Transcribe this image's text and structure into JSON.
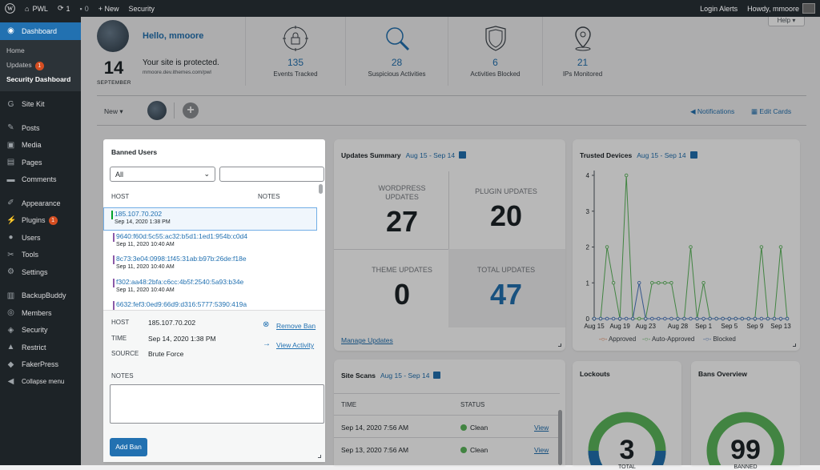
{
  "adminbar": {
    "site": "PWL",
    "updates_count": "1",
    "comments_count": "0",
    "new": "+ New",
    "security": "Security",
    "login_alerts": "Login Alerts",
    "howdy": "Howdy, mmoore"
  },
  "sidebar": {
    "dashboard": "Dashboard",
    "sub": [
      "Home",
      "Updates",
      "Security Dashboard"
    ],
    "updates_badge": "1",
    "items": [
      {
        "label": "Site Kit",
        "icon": "sitekit-icon"
      },
      {
        "label": "Posts",
        "icon": "pin-icon"
      },
      {
        "label": "Media",
        "icon": "media-icon"
      },
      {
        "label": "Pages",
        "icon": "pages-icon"
      },
      {
        "label": "Comments",
        "icon": "comments-icon"
      },
      {
        "label": "Appearance",
        "icon": "brush-icon"
      },
      {
        "label": "Plugins",
        "icon": "plugin-icon",
        "badge": "1"
      },
      {
        "label": "Users",
        "icon": "users-icon"
      },
      {
        "label": "Tools",
        "icon": "wrench-icon"
      },
      {
        "label": "Settings",
        "icon": "settings-icon"
      },
      {
        "label": "BackupBuddy",
        "icon": "backup-icon"
      },
      {
        "label": "Members",
        "icon": "members-icon"
      },
      {
        "label": "Security",
        "icon": "shield-icon"
      },
      {
        "label": "Restrict",
        "icon": "lock-icon"
      },
      {
        "label": "FakerPress",
        "icon": "faker-icon"
      },
      {
        "label": "Collapse menu",
        "icon": "collapse-icon"
      }
    ]
  },
  "help": "Help ▾",
  "header": {
    "day": "14",
    "month": "SEPTEMBER",
    "hello": "Hello, mmoore",
    "protected": "Your site is protected.",
    "site_url": "mmoore.dev.ithemes.com/pwl",
    "stats": [
      {
        "value": "135",
        "label": "Events Tracked"
      },
      {
        "value": "28",
        "label": "Suspicious Activities"
      },
      {
        "value": "6",
        "label": "Activities Blocked"
      },
      {
        "value": "21",
        "label": "IPs Monitored"
      }
    ]
  },
  "toolbar": {
    "new": "New",
    "notifications": "Notifications",
    "edit_cards": "Edit Cards"
  },
  "banned": {
    "title": "Banned Users",
    "filter": "All",
    "col_host": "HOST",
    "col_notes": "NOTES",
    "rows": [
      {
        "ip": "185.107.70.202",
        "date": "Sep 14, 2020 1:38 PM"
      },
      {
        "ip": "9640:f60d:5c55:ac32:b5d1:1ed1:954b:c0d4",
        "date": "Sep 11, 2020 10:40 AM"
      },
      {
        "ip": "8c73:3e04:0998:1f45:31ab:b97b:26de:f18e",
        "date": "Sep 11, 2020 10:40 AM"
      },
      {
        "ip": "f302:aa48:2bfa:c6cc:4b5f:2540:5a93:b34e",
        "date": "Sep 11, 2020 10:40 AM"
      },
      {
        "ip": "6632:fef3:0ed9:66d9:d316:5777:5390:419a",
        "date": ""
      }
    ],
    "detail": {
      "host_label": "HOST",
      "host": "185.107.70.202",
      "time_label": "TIME",
      "time": "Sep 14, 2020 1:38 PM",
      "source_label": "SOURCE",
      "source": "Brute Force",
      "remove_ban": "Remove Ban",
      "view_activity": "View Activity",
      "notes_label": "NOTES",
      "add_ban": "Add Ban"
    }
  },
  "updates": {
    "title": "Updates Summary",
    "range": "Aug 15 - Sep 14",
    "wordpress_label": "WORDPRESS UPDATES",
    "wordpress": "27",
    "plugin_label": "PLUGIN UPDATES",
    "plugin": "20",
    "theme_label": "THEME UPDATES",
    "theme": "0",
    "total_label": "TOTAL UPDATES",
    "total": "47",
    "manage": "Manage Updates"
  },
  "trusted": {
    "title": "Trusted Devices",
    "range": "Aug 15 - Sep 14"
  },
  "scans": {
    "title": "Site Scans",
    "range": "Aug 15 - Sep 14",
    "col_time": "TIME",
    "col_status": "STATUS",
    "rows": [
      {
        "time": "Sep 14, 2020 7:56 AM",
        "status": "Clean",
        "action": "View"
      },
      {
        "time": "Sep 13, 2020 7:56 AM",
        "status": "Clean",
        "action": "View"
      }
    ]
  },
  "lockouts": {
    "title": "Lockouts",
    "value": "3",
    "label": "TOTAL"
  },
  "bans": {
    "title": "Bans Overview",
    "value": "99",
    "label": "BANNED"
  },
  "colors": {
    "accent": "#2271b1",
    "approved": "#e26f3b",
    "auto_approved": "#5cb85c",
    "blocked": "#4a78c2"
  },
  "chart_data": {
    "type": "line",
    "x": [
      "Aug 15",
      "Aug 16",
      "Aug 17",
      "Aug 18",
      "Aug 19",
      "Aug 20",
      "Aug 21",
      "Aug 22",
      "Aug 23",
      "Aug 24",
      "Aug 25",
      "Aug 26",
      "Aug 27",
      "Aug 28",
      "Aug 29",
      "Aug 30",
      "Aug 31",
      "Sep 1",
      "Sep 2",
      "Sep 3",
      "Sep 4",
      "Sep 5",
      "Sep 6",
      "Sep 7",
      "Sep 8",
      "Sep 9",
      "Sep 10",
      "Sep 11",
      "Sep 12",
      "Sep 13",
      "Sep 14"
    ],
    "xticks": [
      "Aug 15",
      "Aug 19",
      "Aug 23",
      "Aug 28",
      "Sep 1",
      "Sep 5",
      "Sep 9",
      "Sep 13"
    ],
    "yticks": [
      "0",
      "1",
      "2",
      "3",
      "4"
    ],
    "ylim": [
      0,
      4
    ],
    "series": [
      {
        "name": "Approved",
        "color": "#e26f3b",
        "values": [
          0,
          0,
          0,
          0,
          0,
          0,
          0,
          0,
          0,
          0,
          0,
          0,
          0,
          0,
          0,
          0,
          0,
          0,
          0,
          0,
          0,
          0,
          0,
          0,
          0,
          0,
          0,
          0,
          0,
          0,
          0
        ]
      },
      {
        "name": "Auto-Approved",
        "color": "#5cb85c",
        "values": [
          0,
          0,
          2,
          1,
          0,
          4,
          0,
          0,
          0,
          1,
          1,
          1,
          1,
          0,
          0,
          2,
          0,
          1,
          0,
          0,
          0,
          0,
          0,
          0,
          0,
          0,
          2,
          0,
          0,
          2,
          0
        ]
      },
      {
        "name": "Blocked",
        "color": "#4a78c2",
        "values": [
          0,
          0,
          0,
          0,
          0,
          0,
          0,
          1,
          0,
          0,
          0,
          0,
          0,
          0,
          0,
          0,
          0,
          0,
          0,
          0,
          0,
          0,
          0,
          0,
          0,
          0,
          0,
          0,
          0,
          0,
          0
        ]
      }
    ]
  }
}
